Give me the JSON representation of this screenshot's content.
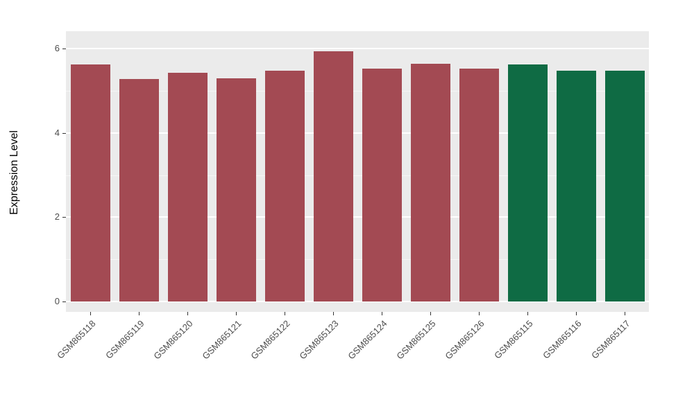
{
  "chart_data": {
    "type": "bar",
    "categories": [
      "GSM865118",
      "GSM865119",
      "GSM865120",
      "GSM865121",
      "GSM865122",
      "GSM865123",
      "GSM865124",
      "GSM865125",
      "GSM865126",
      "GSM865115",
      "GSM865116",
      "GSM865117"
    ],
    "values": [
      5.62,
      5.28,
      5.43,
      5.3,
      5.47,
      5.93,
      5.52,
      5.64,
      5.52,
      5.63,
      5.48,
      5.47
    ],
    "bar_colors": [
      "#A34A53",
      "#A34A53",
      "#A34A53",
      "#A34A53",
      "#A34A53",
      "#A34A53",
      "#A34A53",
      "#A34A53",
      "#A34A53",
      "#0F6B44",
      "#0F6B44",
      "#0F6B44"
    ],
    "group_colors": {
      "red_group": "#A34A53",
      "green_group": "#0F6B44"
    },
    "title": "",
    "xlabel": "",
    "ylabel": "Expression Level",
    "ylim": [
      0,
      6
    ],
    "yticks": [
      0,
      2,
      4,
      6
    ],
    "ytick_labels": [
      "0",
      "2",
      "4",
      "6"
    ],
    "yticks_minor": [
      1,
      3,
      5
    ],
    "grid": "on",
    "legend": "none",
    "panel_background": "#EBEBEB"
  }
}
